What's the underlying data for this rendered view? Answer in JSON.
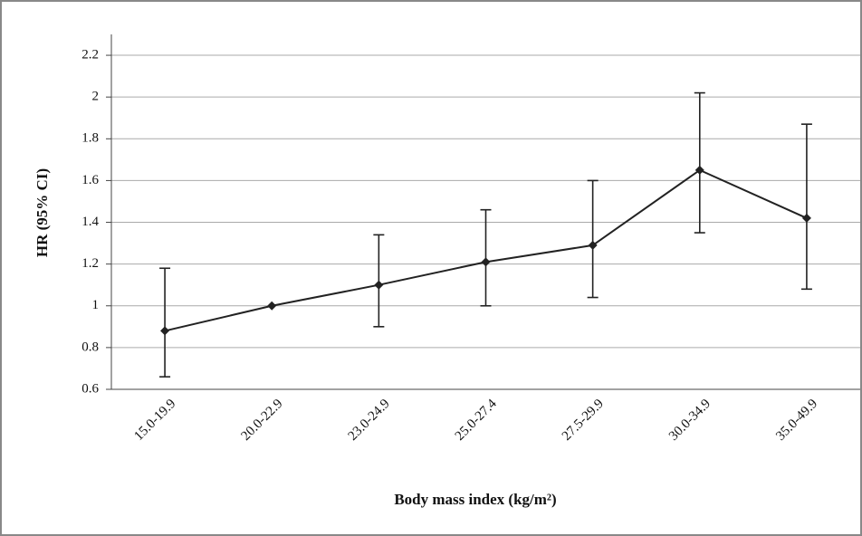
{
  "chart_data": {
    "type": "line",
    "x_label": "Body mass index (kg/m²)",
    "y_label": "HR (95% CI)",
    "categories": [
      "15.0-19.9",
      "20.0-22.9",
      "23.0-24.9",
      "25.0-27.4",
      "27.5-29.9",
      "30.0-34.9",
      "35.0-49.9"
    ],
    "series": [
      {
        "color": "#222222",
        "values": [
          0.88,
          1.0,
          1.1,
          1.21,
          1.29,
          1.65,
          1.42
        ],
        "lower": [
          0.66,
          null,
          0.9,
          1.0,
          1.04,
          1.35,
          1.08
        ],
        "upper": [
          1.18,
          null,
          1.34,
          1.46,
          1.6,
          2.02,
          1.87
        ]
      }
    ],
    "ylim": [
      0.6,
      2.3
    ],
    "yticks": [
      0.6,
      0.8,
      1,
      1.2,
      1.4,
      1.6,
      1.8,
      2,
      2.2
    ],
    "grid": true
  }
}
